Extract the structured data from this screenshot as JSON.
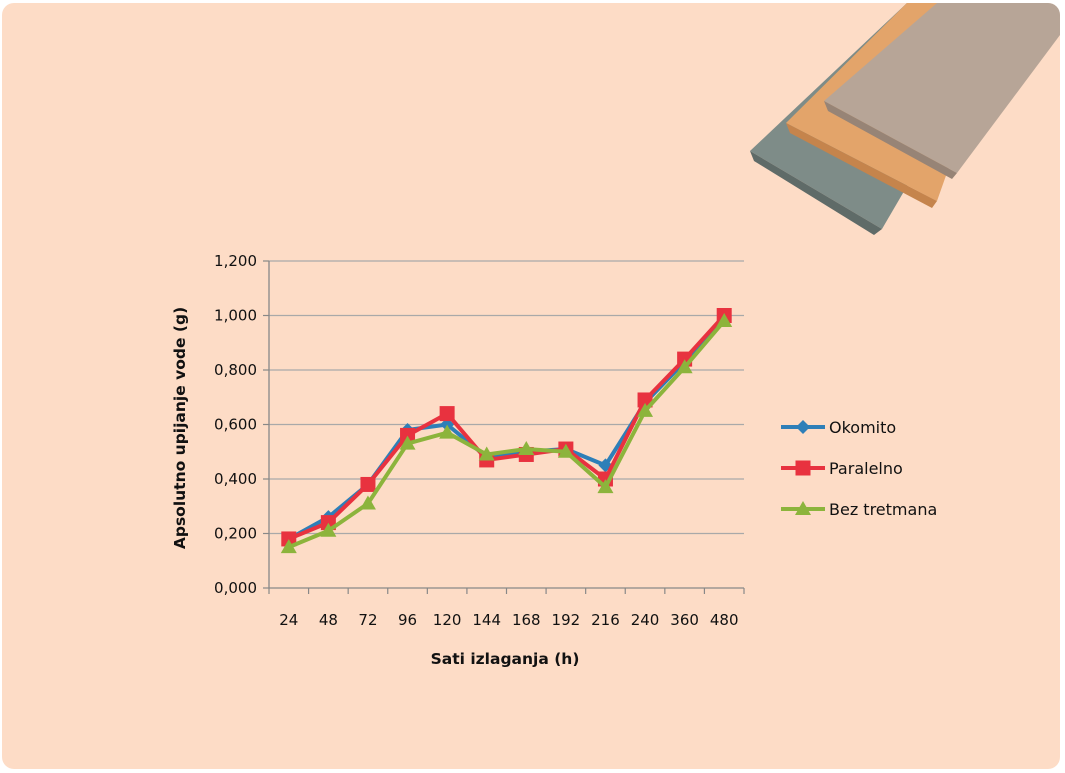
{
  "chart_data": {
    "type": "line",
    "categories": [
      "24",
      "48",
      "72",
      "96",
      "120",
      "144",
      "168",
      "192",
      "216",
      "240",
      "360",
      "480"
    ],
    "xlabel": "Sati izlaganja (h)",
    "ylabel": "Apsolutno upijanje vode (g)",
    "ylim": [
      0,
      1.2
    ],
    "yticks": [
      "0,000",
      "0,200",
      "0,400",
      "0,600",
      "0,800",
      "1,000",
      "1,200"
    ],
    "grid": "horizontal",
    "legend_position": "right",
    "series": [
      {
        "name": "Okomito",
        "color": "#2e7fb8",
        "marker": "diamond",
        "values": [
          0.18,
          0.26,
          0.38,
          0.58,
          0.6,
          0.48,
          0.5,
          0.51,
          0.45,
          0.68,
          0.83,
          0.99
        ]
      },
      {
        "name": "Paralelno",
        "color": "#e8323f",
        "marker": "square",
        "values": [
          0.18,
          0.24,
          0.38,
          0.56,
          0.64,
          0.47,
          0.49,
          0.51,
          0.4,
          0.69,
          0.84,
          1.0
        ]
      },
      {
        "name": "Bez tretmana",
        "color": "#8cb43c",
        "marker": "triangle",
        "values": [
          0.15,
          0.21,
          0.31,
          0.53,
          0.57,
          0.49,
          0.51,
          0.5,
          0.37,
          0.65,
          0.81,
          0.98
        ]
      }
    ]
  }
}
